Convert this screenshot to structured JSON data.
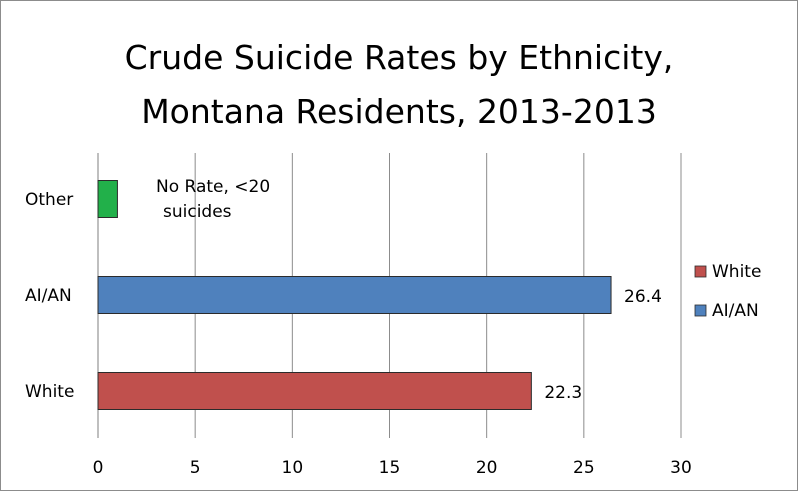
{
  "chart_data": {
    "type": "bar",
    "orientation": "horizontal",
    "title_lines": [
      "Crude Suicide Rates by Ethnicity,",
      "Montana Residents, 2013-2013"
    ],
    "categories": [
      "Other",
      "AI/AN",
      "White"
    ],
    "values": [
      1,
      26.4,
      22.3
    ],
    "data_labels": [
      "",
      "26.4",
      "22.3"
    ],
    "bar_colors": [
      "#22b04a",
      "#4f81bd",
      "#c0504d"
    ],
    "annotation": [
      "No Rate, <20",
      "suicides"
    ],
    "xlim": [
      0,
      30
    ],
    "x_ticks": [
      "0",
      "5",
      "10",
      "15",
      "20",
      "25",
      "30"
    ],
    "gridlines": true,
    "legend_position": "right",
    "legend": [
      {
        "label": "White",
        "color": "#c0504d"
      },
      {
        "label": "AI/AN",
        "color": "#4f81bd"
      }
    ]
  }
}
